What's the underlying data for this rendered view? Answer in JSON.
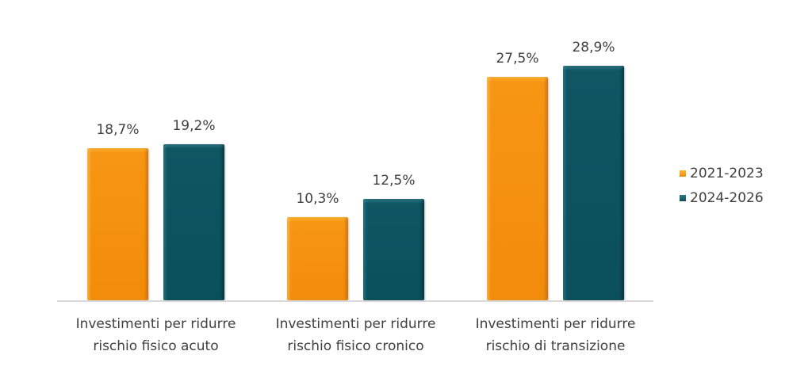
{
  "chart_data": {
    "type": "bar",
    "title": "",
    "xlabel": "",
    "ylabel": "",
    "categories": [
      "Investimenti per ridurre rischio fisico acuto",
      "Investimenti per ridurre rischio fisico cronico",
      "Investimenti per ridurre rischio di transizione"
    ],
    "category_lines": [
      [
        "Investimenti per ridurre",
        "rischio fisico acuto"
      ],
      [
        "Investimenti per ridurre",
        "rischio fisico cronico"
      ],
      [
        "Investimenti per ridurre",
        "rischio di transizione"
      ]
    ],
    "series": [
      {
        "name": "2021-2023",
        "color": "#f28c0a",
        "values": [
          18.7,
          10.3,
          27.5
        ],
        "labels": [
          "18,7%",
          "10,3%",
          "27,5%"
        ]
      },
      {
        "name": "2024-2026",
        "color": "#0b4f5c",
        "values": [
          19.2,
          12.5,
          28.9
        ],
        "labels": [
          "19,2%",
          "12,5%",
          "28,9%"
        ]
      }
    ],
    "unit": "%",
    "ylim": [
      0,
      34
    ],
    "grid": false,
    "legend_position": "right",
    "data_labels": true
  },
  "legend": {
    "items": [
      {
        "label": "2021-2023",
        "color": "#f28c0a"
      },
      {
        "label": "2024-2026",
        "color": "#0b4f5c"
      }
    ]
  }
}
